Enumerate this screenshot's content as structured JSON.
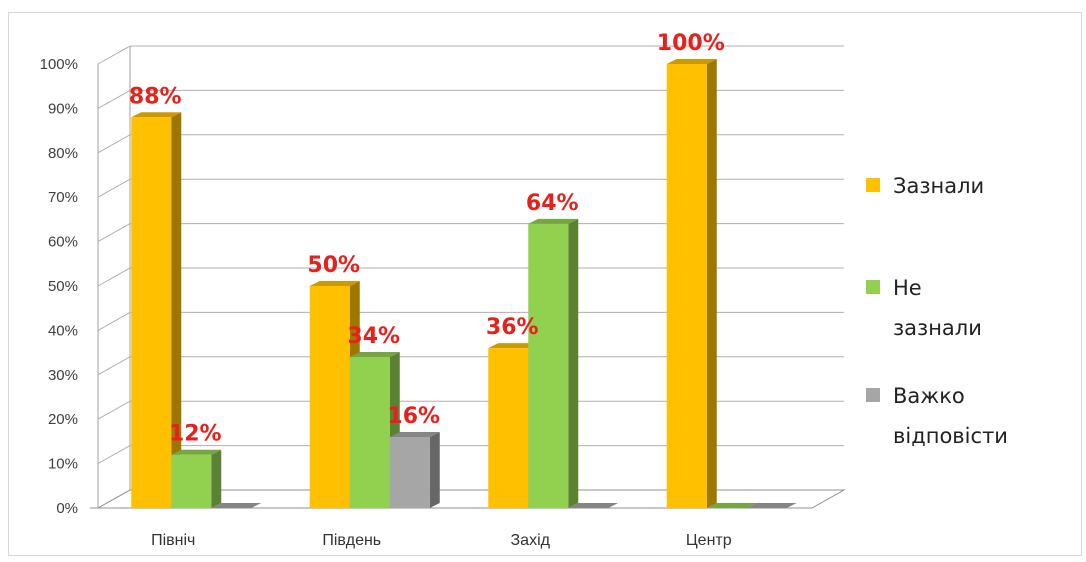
{
  "chart_data": {
    "type": "bar",
    "title": "",
    "xlabel": "",
    "ylabel": "",
    "categories": [
      "Північ",
      "Південь",
      "Захід",
      "Центр"
    ],
    "ylim": [
      0,
      100
    ],
    "yticks": [
      0,
      10,
      20,
      30,
      40,
      50,
      60,
      70,
      80,
      90,
      100
    ],
    "ytick_format": "{v}%",
    "grid": true,
    "legend_position": "right",
    "series": [
      {
        "name": "Зазнали",
        "name_lines": [
          "Зазнали"
        ],
        "color": "#ffc000",
        "values": [
          88,
          50,
          36,
          100
        ],
        "labels": [
          "88%",
          "50%",
          "36%",
          "100%"
        ]
      },
      {
        "name": "Не зазнали",
        "name_lines": [
          "Не",
          "зазнали"
        ],
        "color": "#92d050",
        "values": [
          12,
          34,
          64,
          0
        ],
        "labels": [
          "12%",
          "34%",
          "64%",
          ""
        ]
      },
      {
        "name": "Важко відповісти",
        "name_lines": [
          "Важко",
          "відповісти"
        ],
        "color": "#a6a6a6",
        "values": [
          0,
          16,
          0,
          0
        ],
        "labels": [
          "",
          "16%",
          "",
          ""
        ]
      }
    ]
  }
}
